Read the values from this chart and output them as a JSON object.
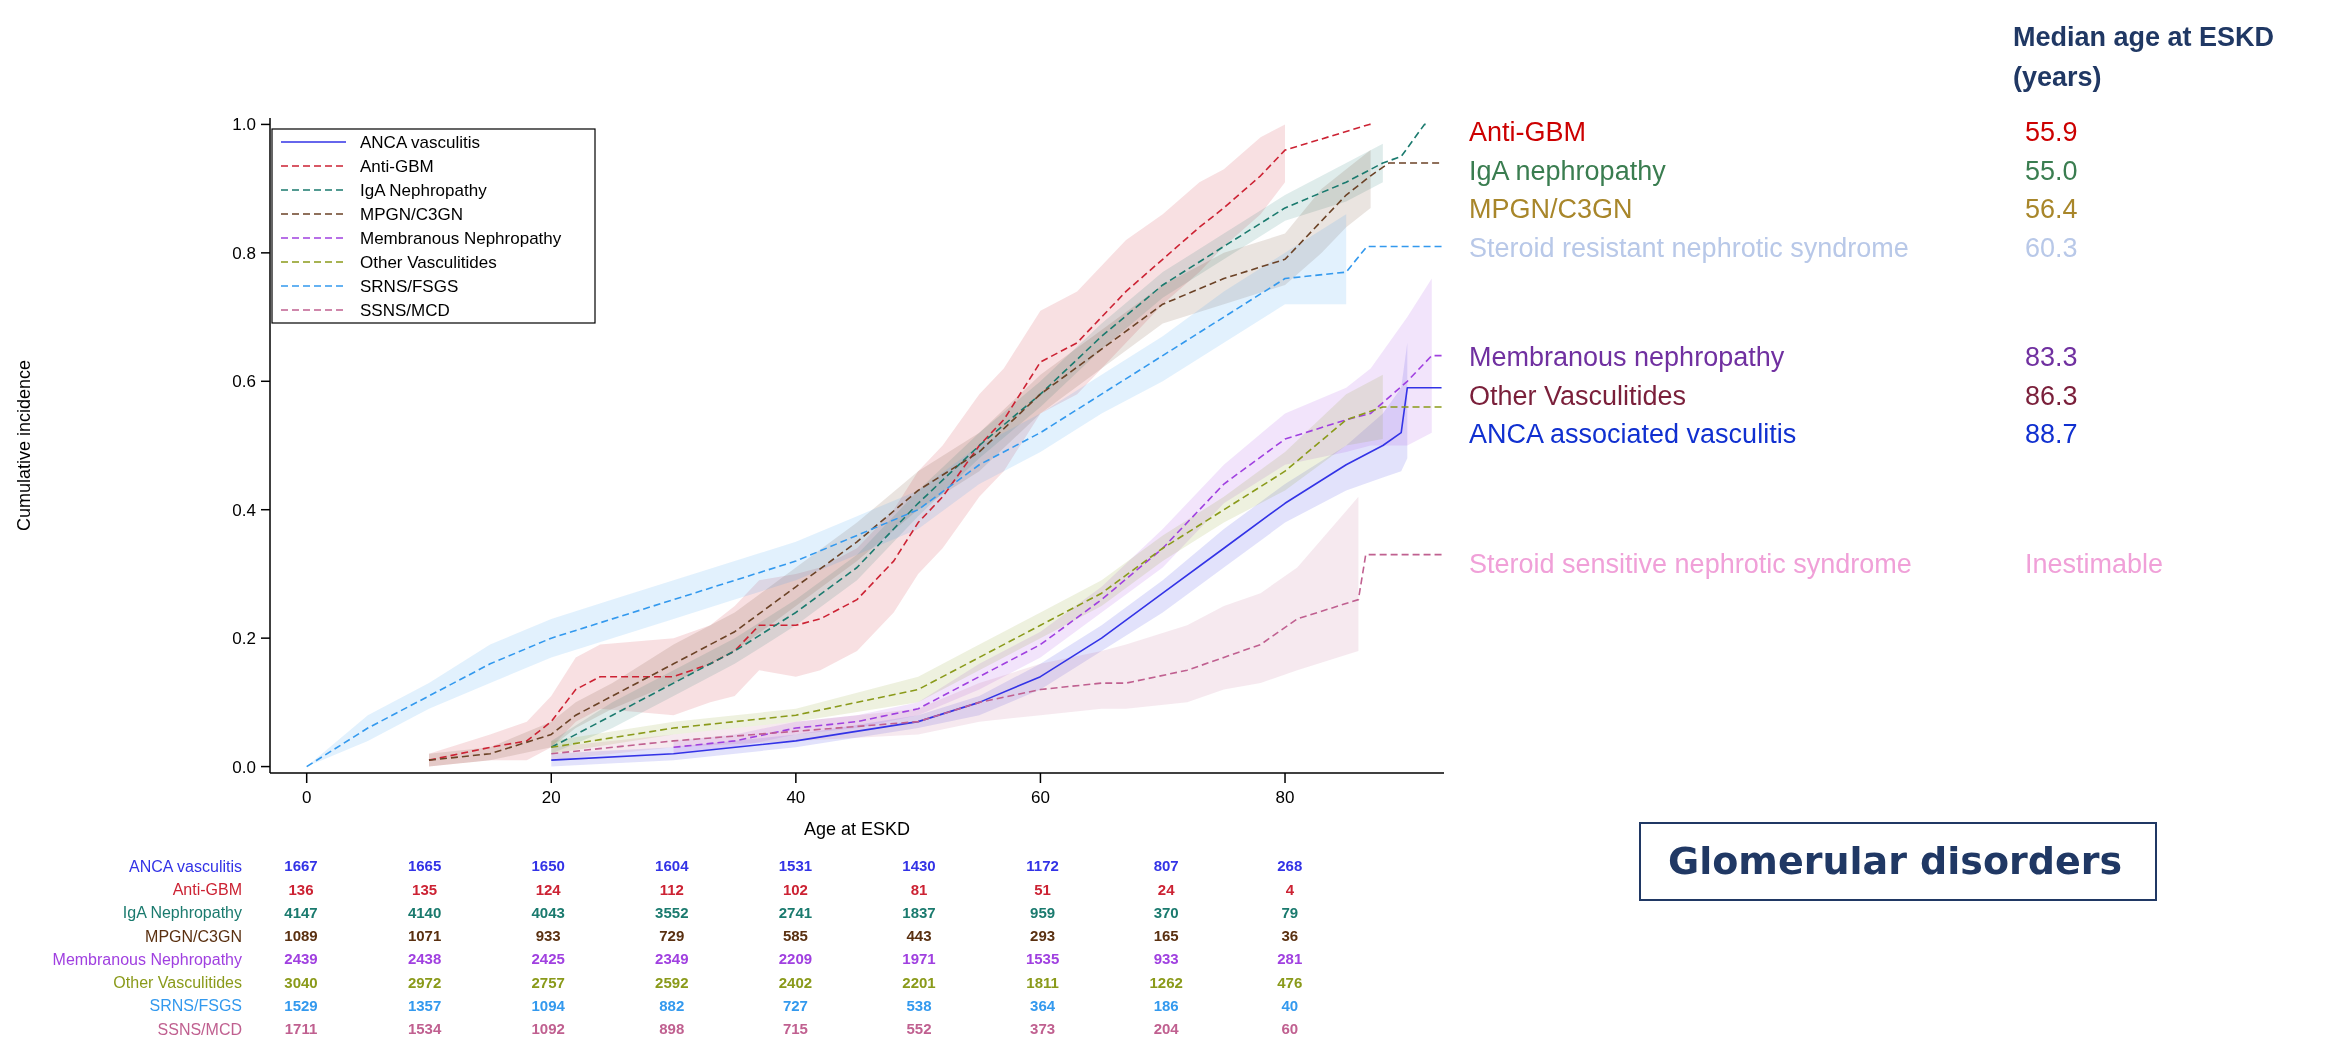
{
  "chart_data": [
    {
      "type": "line",
      "xlabel": "Age at ESKD",
      "ylabel": "Cumulative incidence",
      "xlim": [
        -3,
        93
      ],
      "ylim": [
        -0.01,
        1.01
      ],
      "xticks": [
        0,
        20,
        40,
        60,
        80
      ],
      "yticks": [
        {
          "value": 0,
          "label": "0.0"
        },
        {
          "value": 0.2,
          "label": "0.2"
        },
        {
          "value": 0.4,
          "label": "0.4"
        },
        {
          "value": 0.6,
          "label": "0.6"
        },
        {
          "value": 0.8,
          "label": "0.8"
        },
        {
          "value": 1,
          "label": "1.0"
        }
      ],
      "legend": "top left",
      "series": [
        {
          "name": "ANCA vasculitis",
          "color": "#3333e6",
          "line_style": "solid",
          "x": [
            20,
            30,
            40,
            50,
            55,
            60,
            65,
            70,
            75,
            80,
            85,
            88,
            89.5,
            90,
            92.8
          ],
          "values": [
            0.01,
            0.02,
            0.04,
            0.07,
            0.1,
            0.14,
            0.2,
            0.27,
            0.34,
            0.41,
            0.47,
            0.5,
            0.52,
            0.59,
            0.59
          ],
          "lower": [
            0,
            0.01,
            0.03,
            0.06,
            0.08,
            0.12,
            0.18,
            0.24,
            0.31,
            0.38,
            0.43,
            0.45,
            0.46,
            0.48,
            null
          ],
          "upper": [
            0.02,
            0.03,
            0.05,
            0.08,
            0.11,
            0.16,
            0.22,
            0.29,
            0.37,
            0.44,
            0.5,
            0.55,
            0.59,
            0.66,
            null
          ]
        },
        {
          "name": "Anti-GBM",
          "color": "#cc2233",
          "line_style": "dashed",
          "x": [
            10,
            15,
            18,
            20,
            22,
            24,
            30,
            33,
            35,
            37,
            40,
            42,
            45,
            48,
            50,
            52,
            55,
            57,
            60,
            63,
            65,
            67,
            70,
            73,
            75,
            78,
            80,
            86.9,
            87
          ],
          "values": [
            0.01,
            0.03,
            0.04,
            0.07,
            0.12,
            0.14,
            0.14,
            0.16,
            0.18,
            0.22,
            0.22,
            0.23,
            0.26,
            0.32,
            0.38,
            0.42,
            0.5,
            0.54,
            0.63,
            0.66,
            0.7,
            0.74,
            0.79,
            0.84,
            0.87,
            0.92,
            0.96,
            1,
            1
          ],
          "lower": [
            0,
            0.01,
            0.01,
            0.03,
            0.07,
            0.09,
            0.08,
            0.1,
            0.11,
            0.15,
            0.14,
            0.15,
            0.18,
            0.24,
            0.3,
            0.34,
            0.42,
            0.46,
            0.55,
            0.58,
            0.62,
            0.66,
            0.72,
            0.77,
            0.81,
            0.86,
            0.91,
            null,
            null
          ],
          "upper": [
            0.02,
            0.05,
            0.07,
            0.11,
            0.17,
            0.19,
            0.2,
            0.22,
            0.25,
            0.29,
            0.3,
            0.31,
            0.34,
            0.4,
            0.46,
            0.5,
            0.58,
            0.62,
            0.71,
            0.74,
            0.78,
            0.82,
            0.86,
            0.91,
            0.93,
            0.98,
            1,
            null,
            null
          ]
        },
        {
          "name": "IgA Nephropathy",
          "color": "#1a7a6e",
          "line_style": "dashed",
          "x": [
            20,
            25,
            30,
            35,
            40,
            45,
            50,
            55,
            60,
            65,
            70,
            75,
            80,
            85,
            88,
            89.5,
            91.4,
            91.5
          ],
          "values": [
            0.03,
            0.08,
            0.13,
            0.18,
            0.24,
            0.31,
            0.41,
            0.5,
            0.58,
            0.67,
            0.75,
            0.81,
            0.87,
            0.91,
            0.94,
            0.95,
            1,
            1
          ],
          "lower": [
            0.02,
            0.06,
            0.11,
            0.16,
            0.22,
            0.29,
            0.39,
            0.48,
            0.56,
            0.65,
            0.73,
            0.79,
            0.85,
            0.88,
            0.91,
            null,
            null,
            null
          ],
          "upper": [
            0.04,
            0.1,
            0.15,
            0.2,
            0.26,
            0.33,
            0.43,
            0.52,
            0.6,
            0.69,
            0.77,
            0.83,
            0.89,
            0.94,
            0.97,
            null,
            null,
            null
          ]
        },
        {
          "name": "MPGN/C3GN",
          "color": "#6b4226",
          "line_style": "dashed",
          "x": [
            10,
            15,
            20,
            22,
            25,
            30,
            35,
            40,
            45,
            50,
            55,
            60,
            65,
            70,
            75,
            80,
            83,
            85,
            87,
            88.5,
            92.6
          ],
          "values": [
            0.01,
            0.02,
            0.05,
            0.08,
            0.11,
            0.16,
            0.21,
            0.28,
            0.35,
            0.43,
            0.49,
            0.58,
            0.65,
            0.72,
            0.76,
            0.79,
            0.85,
            0.89,
            0.92,
            0.94,
            0.94
          ],
          "lower": [
            0,
            0.01,
            0.03,
            0.06,
            0.09,
            0.13,
            0.18,
            0.25,
            0.32,
            0.4,
            0.46,
            0.55,
            0.62,
            0.69,
            0.72,
            0.75,
            0.8,
            0.84,
            0.87,
            null,
            null
          ],
          "upper": [
            0.02,
            0.03,
            0.07,
            0.1,
            0.13,
            0.19,
            0.24,
            0.31,
            0.38,
            0.46,
            0.52,
            0.61,
            0.68,
            0.75,
            0.8,
            0.83,
            0.9,
            0.93,
            0.96,
            null,
            null
          ]
        },
        {
          "name": "Membranous Nephropathy",
          "color": "#a040e0",
          "line_style": "dashed",
          "x": [
            30,
            35,
            40,
            45,
            50,
            55,
            60,
            65,
            70,
            75,
            80,
            85,
            87,
            90,
            92,
            92.8
          ],
          "values": [
            0.03,
            0.04,
            0.06,
            0.07,
            0.09,
            0.14,
            0.19,
            0.26,
            0.34,
            0.44,
            0.51,
            0.54,
            0.55,
            0.6,
            0.64,
            0.64
          ],
          "lower": [
            0.02,
            0.03,
            0.05,
            0.06,
            0.08,
            0.12,
            0.17,
            0.24,
            0.31,
            0.41,
            0.47,
            0.49,
            0.5,
            0.5,
            0.52,
            null
          ],
          "upper": [
            0.04,
            0.05,
            0.07,
            0.08,
            0.1,
            0.16,
            0.21,
            0.28,
            0.37,
            0.47,
            0.55,
            0.59,
            0.62,
            0.7,
            0.76,
            null
          ]
        },
        {
          "name": "Other Vasculitides",
          "color": "#8a9a1a",
          "line_style": "dashed",
          "x": [
            20,
            30,
            40,
            50,
            55,
            60,
            65,
            70,
            75,
            80,
            85,
            88,
            92.8
          ],
          "values": [
            0.03,
            0.06,
            0.08,
            0.12,
            0.17,
            0.22,
            0.27,
            0.34,
            0.4,
            0.46,
            0.54,
            0.56,
            0.56
          ],
          "lower": [
            0.02,
            0.05,
            0.07,
            0.1,
            0.15,
            0.2,
            0.25,
            0.32,
            0.38,
            0.43,
            0.5,
            0.51,
            null
          ],
          "upper": [
            0.04,
            0.07,
            0.09,
            0.14,
            0.19,
            0.24,
            0.29,
            0.36,
            0.42,
            0.49,
            0.58,
            0.61,
            null
          ]
        },
        {
          "name": "SRNS/FSGS",
          "color": "#3399ee",
          "line_style": "dashed",
          "x": [
            0,
            5,
            10,
            15,
            20,
            25,
            30,
            35,
            40,
            45,
            50,
            55,
            60,
            65,
            70,
            75,
            80,
            85,
            86.7,
            92.8
          ],
          "values": [
            0,
            0.06,
            0.11,
            0.16,
            0.2,
            0.23,
            0.26,
            0.29,
            0.32,
            0.36,
            0.4,
            0.47,
            0.52,
            0.58,
            0.64,
            0.7,
            0.76,
            0.77,
            0.81,
            0.81
          ],
          "lower": [
            0,
            0.04,
            0.09,
            0.13,
            0.17,
            0.2,
            0.23,
            0.26,
            0.29,
            0.33,
            0.37,
            0.44,
            0.49,
            0.55,
            0.6,
            0.66,
            0.72,
            0.72,
            null,
            null
          ],
          "upper": [
            0,
            0.08,
            0.13,
            0.19,
            0.23,
            0.26,
            0.29,
            0.32,
            0.35,
            0.39,
            0.43,
            0.5,
            0.55,
            0.61,
            0.67,
            0.74,
            0.8,
            0.86,
            null,
            null
          ]
        },
        {
          "name": "SSNS/MCD",
          "color": "#c06090",
          "line_style": "dashed",
          "x": [
            20,
            30,
            40,
            50,
            55,
            60,
            65,
            67,
            72,
            75,
            78,
            81,
            86,
            86.6,
            92.8
          ],
          "values": [
            0.02,
            0.04,
            0.055,
            0.07,
            0.1,
            0.12,
            0.13,
            0.13,
            0.15,
            0.17,
            0.19,
            0.23,
            0.26,
            0.33,
            0.33
          ],
          "lower": [
            0.01,
            0.03,
            0.04,
            0.05,
            0.07,
            0.08,
            0.09,
            0.09,
            0.1,
            0.12,
            0.13,
            0.15,
            0.18,
            null,
            null
          ],
          "upper": [
            0.03,
            0.05,
            0.07,
            0.09,
            0.13,
            0.16,
            0.18,
            0.19,
            0.22,
            0.25,
            0.27,
            0.31,
            0.42,
            null,
            null
          ]
        }
      ]
    },
    {
      "type": "heatmap",
      "data_labels": true,
      "categories": [
        null,
        null,
        null,
        null,
        null,
        null,
        null,
        null,
        null
      ],
      "y_categories": [
        "ANCA vasculitis",
        "Anti-GBM",
        "IgA Nephropathy",
        "MPGN/C3GN",
        "Membranous Nephropathy",
        "Other Vasculitides",
        "SRNS/FSGS",
        "SSNS/MCD"
      ],
      "colors": [
        "#3333e6",
        "#cc2233",
        "#1a7a6e",
        "#5a3010",
        "#a040e0",
        "#8a9a1a",
        "#3399ee",
        "#c06090"
      ],
      "cells": [
        [
          1667,
          1665,
          1650,
          1604,
          1531,
          1430,
          1172,
          807,
          268
        ],
        [
          136,
          135,
          124,
          112,
          102,
          81,
          51,
          24,
          4
        ],
        [
          4147,
          4140,
          4043,
          3552,
          2741,
          1837,
          959,
          370,
          79
        ],
        [
          1089,
          1071,
          933,
          729,
          585,
          443,
          293,
          165,
          36
        ],
        [
          2439,
          2438,
          2425,
          2349,
          2209,
          1971,
          1535,
          933,
          281
        ],
        [
          3040,
          2972,
          2757,
          2592,
          2402,
          2201,
          1811,
          1262,
          476
        ],
        [
          1529,
          1357,
          1094,
          882,
          727,
          538,
          364,
          186,
          40
        ],
        [
          1711,
          1534,
          1092,
          898,
          715,
          552,
          373,
          204,
          60
        ]
      ]
    },
    {
      "type": "other",
      "title": "Median age at ESKD (years)",
      "annotations": [
        "Glomerular disorders"
      ],
      "categories": [
        "Anti-GBM",
        "IgA nephropathy",
        "MPGN/C3GN",
        "Steroid resistant nephrotic syndrome",
        "Membranous nephropathy",
        "Other Vasculitides",
        "ANCA associated vasculitis",
        "Steroid sensitive nephrotic syndrome"
      ],
      "value_labels": [
        "55.9",
        "55.0",
        "56.4",
        "60.3",
        "83.3",
        "86.3",
        "88.7",
        "Inestimable"
      ],
      "colors": [
        "#cc0000",
        "#3a7d50",
        "#a8862a",
        "#b8c8e8",
        "#7030a0",
        "#7a1f3a",
        "#1030d0",
        "#f0a0d8"
      ]
    }
  ]
}
